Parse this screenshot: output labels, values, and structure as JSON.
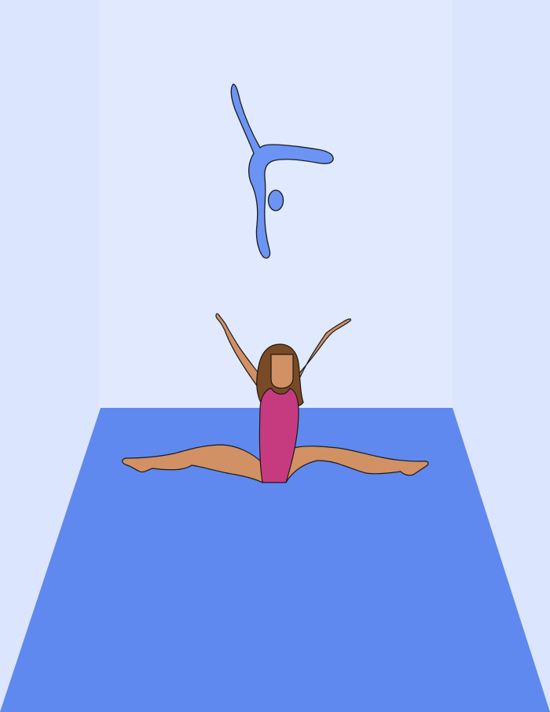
{
  "colors": {
    "side_wall": "#dbe5fd",
    "back_wall": "#e0e9fd",
    "mat": "#5f89ee",
    "skin": "#d19164",
    "hair": "#7a4a26",
    "leotard": "#c63b80",
    "logo": "#6b94f4",
    "outline": "#1a1a1a"
  },
  "icons": {
    "logo": "gymnast-handstand-pictogram-icon",
    "figure": "gymnast-straddle-split-figure"
  }
}
